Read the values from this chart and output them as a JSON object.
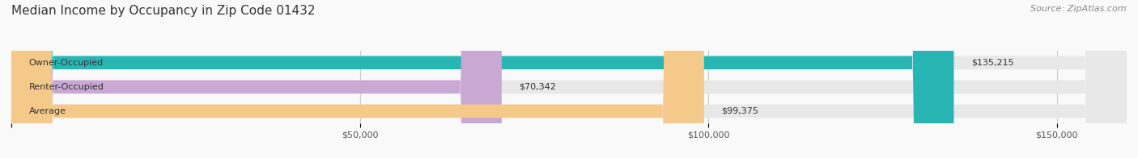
{
  "title": "Median Income by Occupancy in Zip Code 01432",
  "source": "Source: ZipAtlas.com",
  "categories": [
    "Owner-Occupied",
    "Renter-Occupied",
    "Average"
  ],
  "values": [
    135215,
    70342,
    99375
  ],
  "bar_colors": [
    "#2ab5b5",
    "#c9a8d4",
    "#f5c98a"
  ],
  "label_texts": [
    "$135,215",
    "$70,342",
    "$99,375"
  ],
  "xlim": [
    0,
    160000
  ],
  "xticks": [
    0,
    50000,
    100000,
    150000
  ],
  "xtick_labels": [
    "",
    "$50,000",
    "$100,000",
    "$150,000"
  ],
  "bar_bg_color": "#e8e8e8",
  "fig_bg_color": "#f9f9f9",
  "title_fontsize": 11,
  "source_fontsize": 8,
  "label_fontsize": 8,
  "category_fontsize": 8,
  "tick_fontsize": 8,
  "bar_height": 0.55
}
